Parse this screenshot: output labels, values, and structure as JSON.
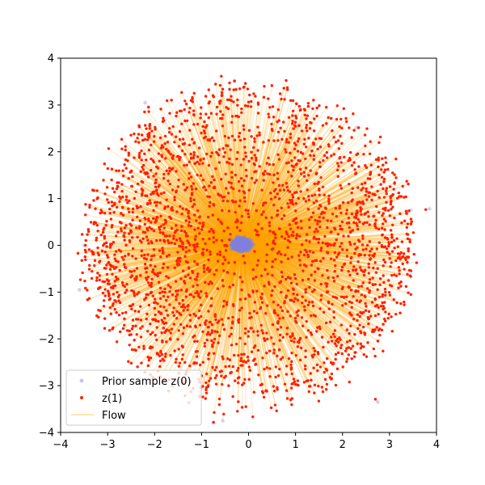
{
  "chart_data": {
    "type": "scatter",
    "title": "",
    "xlabel": "",
    "ylabel": "",
    "xlim": [
      -4,
      4
    ],
    "ylim": [
      -4,
      4
    ],
    "xticks": [
      -4,
      -3,
      -2,
      -1,
      0,
      1,
      2,
      3,
      4
    ],
    "yticks": [
      -4,
      -3,
      -2,
      -1,
      0,
      1,
      2,
      3,
      4
    ],
    "grid": false,
    "legend_position": "lower-left",
    "series": [
      {
        "name": "Prior sample z(0)",
        "kind": "points",
        "color": "#8080e0",
        "description_radius_max": 0.25,
        "outliers": [
          [
            -2.2,
            3.05
          ],
          [
            -0.3,
            3.52
          ],
          [
            2.3,
            2.52
          ],
          [
            3.85,
            0.78
          ],
          [
            -3.6,
            -0.95
          ],
          [
            -3.5,
            0.0
          ],
          [
            2.75,
            -3.35
          ],
          [
            -0.75,
            -3.8
          ],
          [
            -0.55,
            -3.75
          ],
          [
            3.45,
            0.75
          ]
        ]
      },
      {
        "name": "z(1)",
        "kind": "points",
        "color": "#ff2000",
        "radius_range": [
          0.0,
          3.55
        ]
      },
      {
        "name": "Flow",
        "kind": "lines",
        "color": "#ffa500"
      }
    ]
  }
}
